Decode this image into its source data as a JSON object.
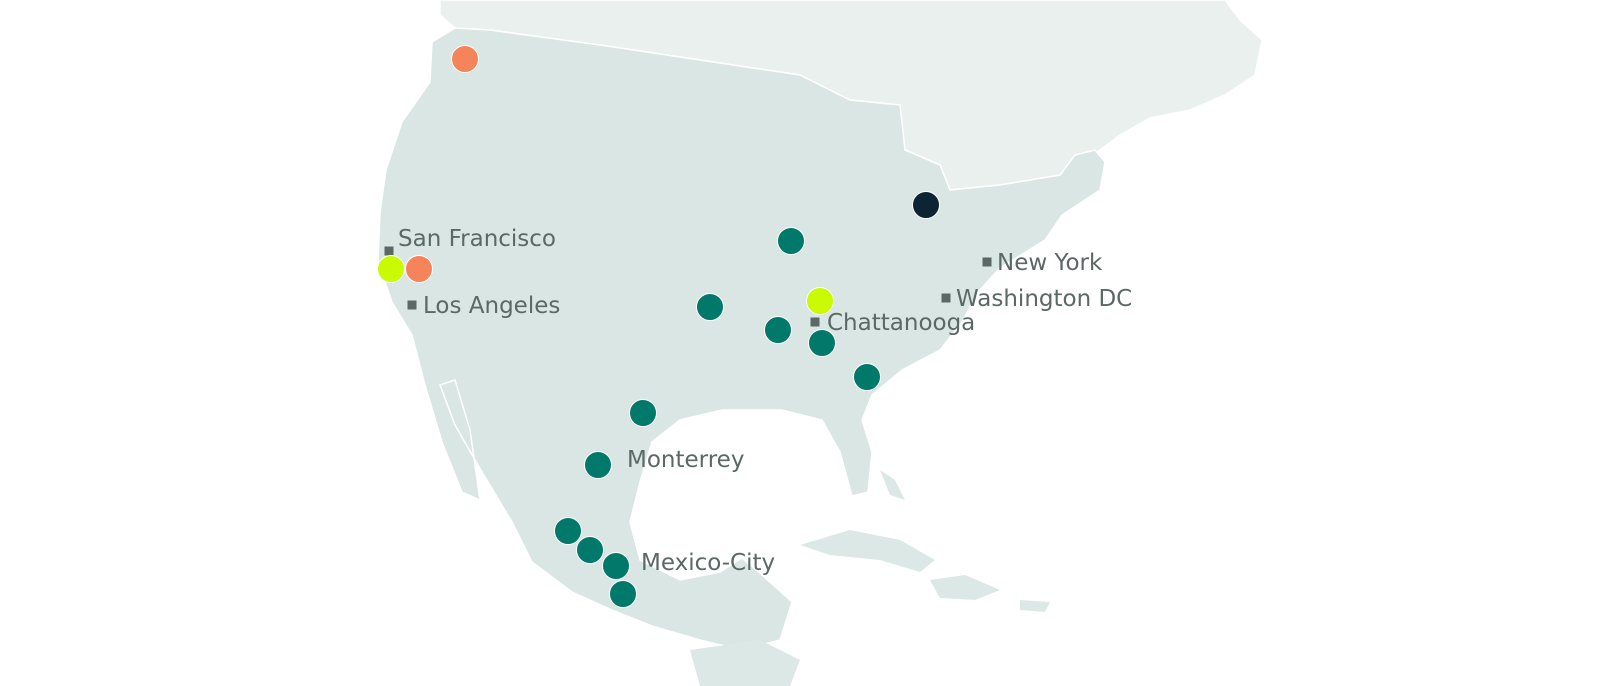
{
  "map": {
    "colors": {
      "usa_mexico_land": "#d9e6e3",
      "canada_land": "#e9f0ee",
      "caribbean_land": "#dce8e5",
      "water": "#ffffff",
      "label": "#5b6866",
      "city_marker": "#5b6866"
    },
    "marker_colors": {
      "teal": "#00796a",
      "orange": "#f6845a",
      "lime": "#c9fa00",
      "navy": "#0c2433"
    },
    "cities": [
      {
        "name": "San Francisco",
        "has_marker": true
      },
      {
        "name": "Los Angeles",
        "has_marker": true
      },
      {
        "name": "Chattanooga",
        "has_marker": true
      },
      {
        "name": "New York",
        "has_marker": true
      },
      {
        "name": "Washington DC",
        "has_marker": true
      },
      {
        "name": "Monterrey",
        "has_marker": false
      },
      {
        "name": "Mexico-City",
        "has_marker": false
      }
    ],
    "location_dots": [
      {
        "color": "orange"
      },
      {
        "color": "orange"
      },
      {
        "color": "lime"
      },
      {
        "color": "lime"
      },
      {
        "color": "navy"
      },
      {
        "color": "teal"
      },
      {
        "color": "teal"
      },
      {
        "color": "teal"
      },
      {
        "color": "teal"
      },
      {
        "color": "teal"
      },
      {
        "color": "teal"
      },
      {
        "color": "teal"
      },
      {
        "color": "teal"
      },
      {
        "color": "teal"
      },
      {
        "color": "teal"
      },
      {
        "color": "teal"
      }
    ]
  }
}
